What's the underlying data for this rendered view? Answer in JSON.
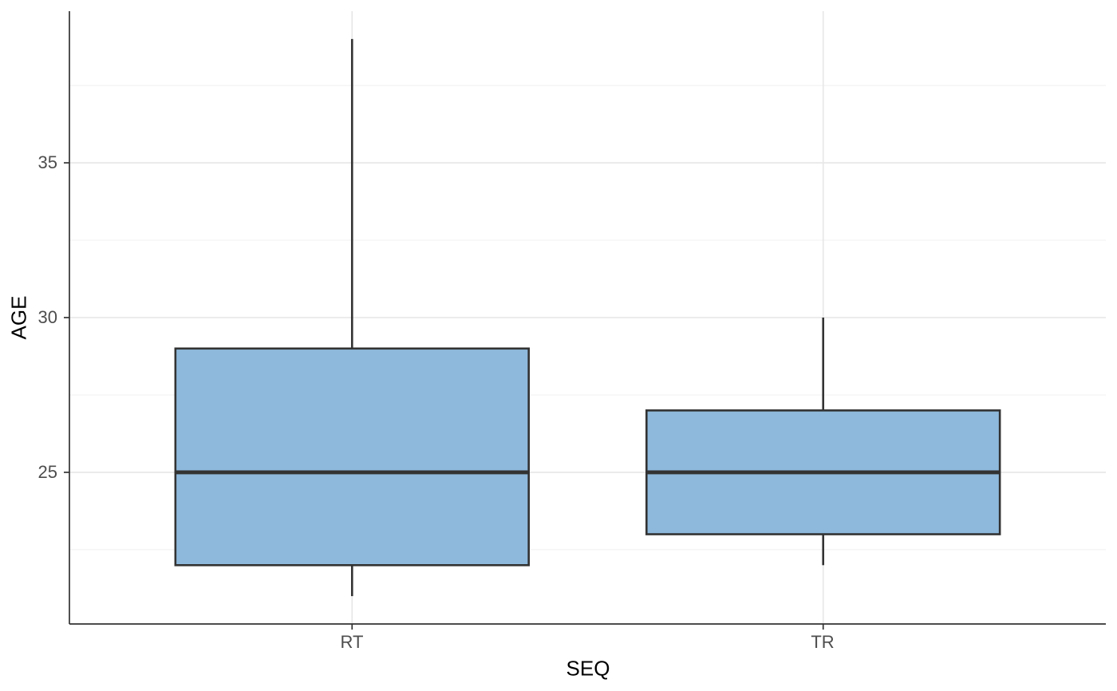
{
  "chart_data": {
    "type": "boxplot",
    "title": "",
    "xlabel": "SEQ",
    "ylabel": "AGE",
    "categories": [
      "RT",
      "TR"
    ],
    "series": [
      {
        "name": "RT",
        "lower_whisker": 21,
        "q1": 22,
        "median": 25,
        "q3": 29,
        "upper_whisker": 39
      },
      {
        "name": "TR",
        "lower_whisker": 22,
        "q1": 23,
        "median": 25,
        "q3": 27,
        "upper_whisker": 30
      }
    ],
    "y_ticks": [
      25,
      30,
      35
    ],
    "y_minor_gridlines": [
      22.5,
      27.5,
      32.5,
      37.5
    ],
    "ylim": [
      20.1,
      39.9
    ],
    "grid": "major-and-minor",
    "legend": "none",
    "colors": {
      "box_fill": "#8EB9DC",
      "box_stroke": "#333333",
      "grid_major": "#E6E6E6",
      "grid_minor": "#F3F3F3",
      "axis_line": "#333333",
      "tick_mark": "#333333",
      "tick_label": "#4D4D4D",
      "axis_title": "#000000",
      "background": "#FFFFFF"
    }
  }
}
